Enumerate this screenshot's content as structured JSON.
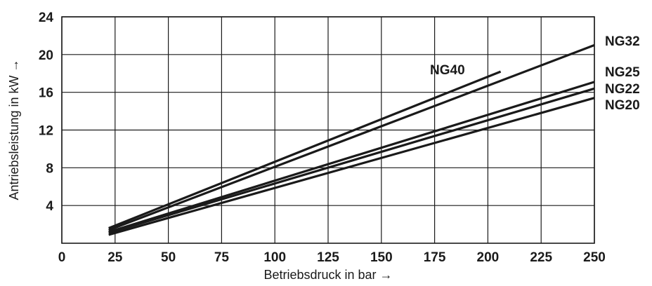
{
  "chart_data": {
    "type": "line",
    "xlabel": "Betriebsdruck in bar →",
    "ylabel": "Antriebsleistung in kW →",
    "xlim": [
      0,
      250
    ],
    "ylim": [
      0,
      24
    ],
    "x_ticks": [
      "0",
      "25",
      "50",
      "75",
      "100",
      "125",
      "150",
      "175",
      "200",
      "225",
      "250"
    ],
    "y_ticks": [
      "4",
      "8",
      "12",
      "16",
      "20",
      "24"
    ],
    "grid": true,
    "series": [
      {
        "name": "NG40",
        "x": [
          22,
          206
        ],
        "y": [
          1.6,
          18.2
        ]
      },
      {
        "name": "NG32",
        "x": [
          22,
          250
        ],
        "y": [
          1.4,
          21.0
        ]
      },
      {
        "name": "NG25",
        "x": [
          22,
          250
        ],
        "y": [
          1.2,
          17.1
        ]
      },
      {
        "name": "NG22",
        "x": [
          22,
          250
        ],
        "y": [
          1.1,
          16.4
        ]
      },
      {
        "name": "NG20",
        "x": [
          22,
          250
        ],
        "y": [
          0.9,
          15.4
        ]
      }
    ]
  }
}
